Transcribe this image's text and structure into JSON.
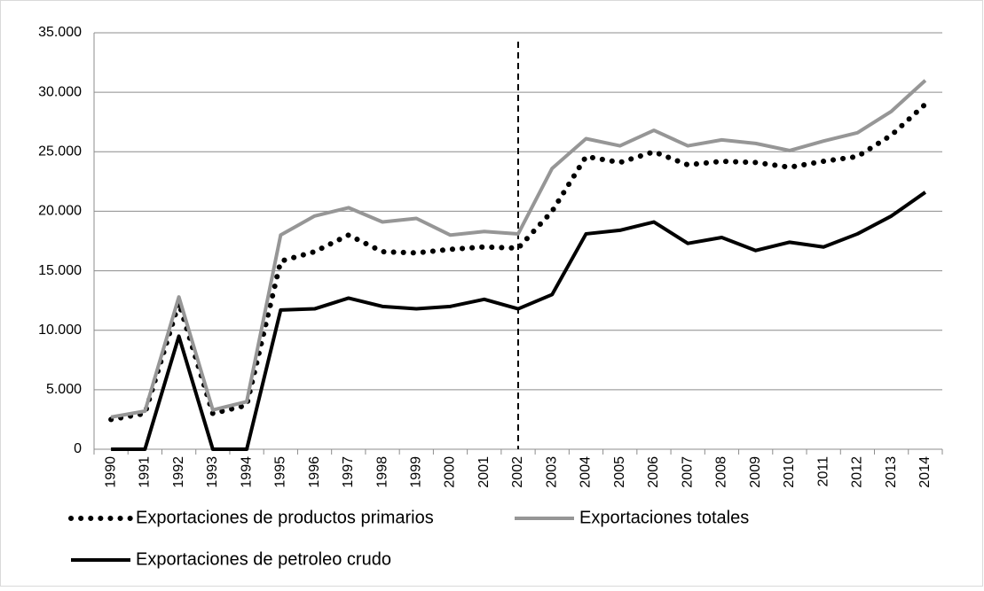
{
  "chart_data": {
    "type": "line",
    "categories": [
      "1990",
      "1991",
      "1992",
      "1993",
      "1994",
      "1995",
      "1996",
      "1997",
      "1998",
      "1999",
      "2000",
      "2001",
      "2002",
      "2003",
      "2004",
      "2005",
      "2006",
      "2007",
      "2008",
      "2009",
      "2010",
      "2011",
      "2012",
      "2013",
      "2014"
    ],
    "series": [
      {
        "name": "Exportaciones de productos primarios",
        "color": "#000000",
        "style": "dotted",
        "values": [
          2500,
          3000,
          12300,
          3000,
          3700,
          15800,
          16600,
          18000,
          16600,
          16500,
          16800,
          17000,
          16900,
          20000,
          24600,
          24100,
          25000,
          23900,
          24200,
          24100,
          23700,
          24200,
          24600,
          26400,
          29000
        ]
      },
      {
        "name": "Exportaciones totales",
        "color": "#969696",
        "style": "solid",
        "values": [
          2700,
          3200,
          12800,
          3300,
          4000,
          18000,
          19600,
          20300,
          19100,
          19400,
          18000,
          18300,
          18100,
          23600,
          26100,
          25500,
          26800,
          25500,
          26000,
          25700,
          25100,
          25900,
          26600,
          28400,
          31000
        ]
      },
      {
        "name": "Exportaciones de petroleo crudo",
        "color": "#000000",
        "style": "solid",
        "values": [
          0,
          0,
          9500,
          0,
          0,
          11700,
          11800,
          12700,
          12000,
          11800,
          12000,
          12600,
          11800,
          13000,
          18100,
          18400,
          19100,
          17300,
          17800,
          16700,
          17400,
          17000,
          18100,
          19600,
          21600
        ]
      }
    ],
    "ylim": [
      0,
      35000
    ],
    "yticks": [
      0,
      {
        "value": 5000,
        "label": "5.000"
      },
      {
        "value": 10000,
        "label": "10.000"
      },
      {
        "value": 15000,
        "label": "15.000"
      },
      {
        "value": 20000,
        "label": "20.000"
      },
      {
        "value": 25000,
        "label": "25.000"
      },
      {
        "value": 30000,
        "label": "30.000"
      },
      {
        "value": 35000,
        "label": "35.000"
      }
    ],
    "grid": true,
    "vertical_marker": "2002",
    "legend": "bottom"
  }
}
